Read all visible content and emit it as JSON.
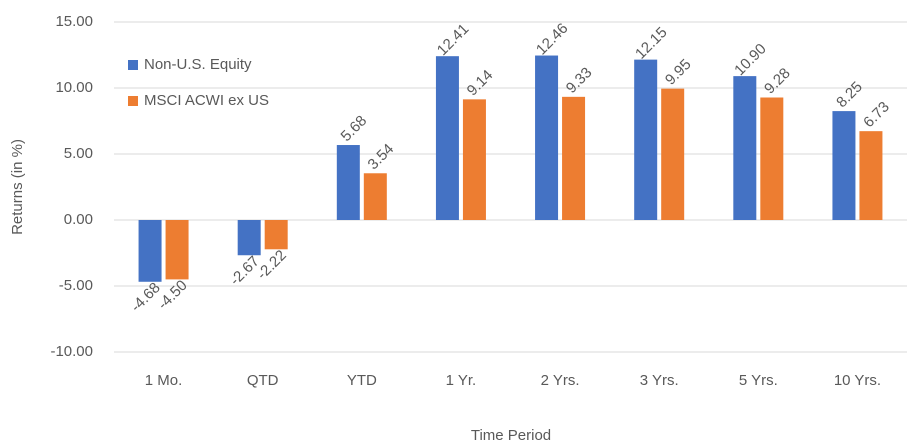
{
  "chart_data": {
    "type": "bar",
    "x_label": "Time Period",
    "y_label": "Returns (in %)",
    "categories": [
      "1 Mo.",
      "QTD",
      "YTD",
      "1 Yr.",
      "2 Yrs.",
      "3 Yrs.",
      "5 Yrs.",
      "10 Yrs."
    ],
    "series": [
      {
        "name": "Non-U.S. Equity",
        "color": "#4472c4",
        "values": [
          -4.68,
          -2.67,
          5.68,
          12.41,
          12.46,
          12.15,
          10.9,
          8.25
        ],
        "value_labels": [
          "-4.68",
          "-2.67",
          "5.68",
          "12.41",
          "12.46",
          "12.15",
          "10.90",
          "8.25"
        ]
      },
      {
        "name": "MSCI ACWI ex US",
        "color": "#ed7d31",
        "values": [
          -4.5,
          -2.22,
          3.54,
          9.14,
          9.33,
          9.95,
          9.28,
          6.73
        ],
        "value_labels": [
          "-4.50",
          "-2.22",
          "3.54",
          "9.14",
          "9.33",
          "9.95",
          "9.28",
          "6.73"
        ]
      }
    ],
    "ylim": [
      -10,
      15
    ],
    "yticks": [
      {
        "value": -10,
        "label": "-10.00"
      },
      {
        "value": -5,
        "label": "-5.00"
      },
      {
        "value": 0,
        "label": "0.00"
      },
      {
        "value": 5,
        "label": "5.00"
      },
      {
        "value": 10,
        "label": "10.00"
      },
      {
        "value": 15,
        "label": "15.00"
      }
    ],
    "grid": true,
    "legend": "top-left"
  }
}
